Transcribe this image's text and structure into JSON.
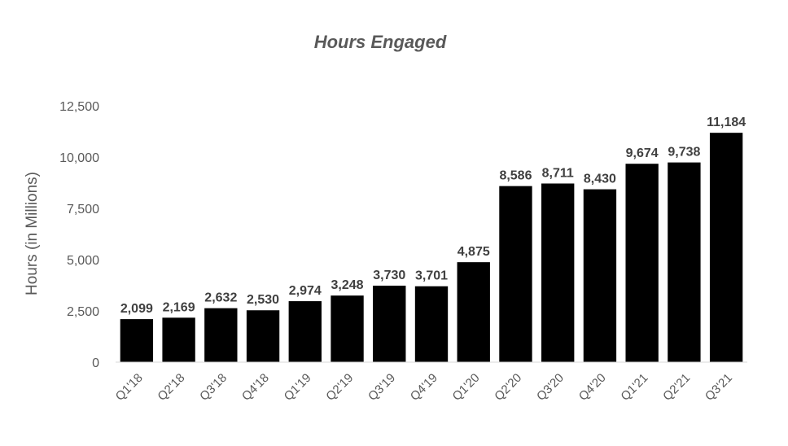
{
  "chart_data": {
    "type": "bar",
    "title": "Hours Engaged",
    "xlabel": "",
    "ylabel": "Hours (in Millions)",
    "ylim": [
      0,
      12500
    ],
    "yticks": [
      0,
      2500,
      5000,
      7500,
      10000,
      12500
    ],
    "ytick_labels": [
      "0",
      "2,500",
      "5,000",
      "7,500",
      "10,000",
      "12,500"
    ],
    "grid": false,
    "legend": "none",
    "bar_color": "#000000",
    "categories": [
      "Q1'18",
      "Q2'18",
      "Q3'18",
      "Q4'18",
      "Q1'19",
      "Q2'19",
      "Q3'19",
      "Q4'19",
      "Q1'20",
      "Q2'20",
      "Q3'20",
      "Q4'20",
      "Q1'21",
      "Q2'21",
      "Q3'21"
    ],
    "values": [
      2099,
      2169,
      2632,
      2530,
      2974,
      3248,
      3730,
      3701,
      4875,
      8586,
      8711,
      8430,
      9674,
      9738,
      11184
    ],
    "value_labels": [
      "2,099",
      "2,169",
      "2,632",
      "2,530",
      "2,974",
      "3,248",
      "3,730",
      "3,701",
      "4,875",
      "8,586",
      "8,711",
      "8,430",
      "9,674",
      "9,738",
      "11,184"
    ]
  }
}
